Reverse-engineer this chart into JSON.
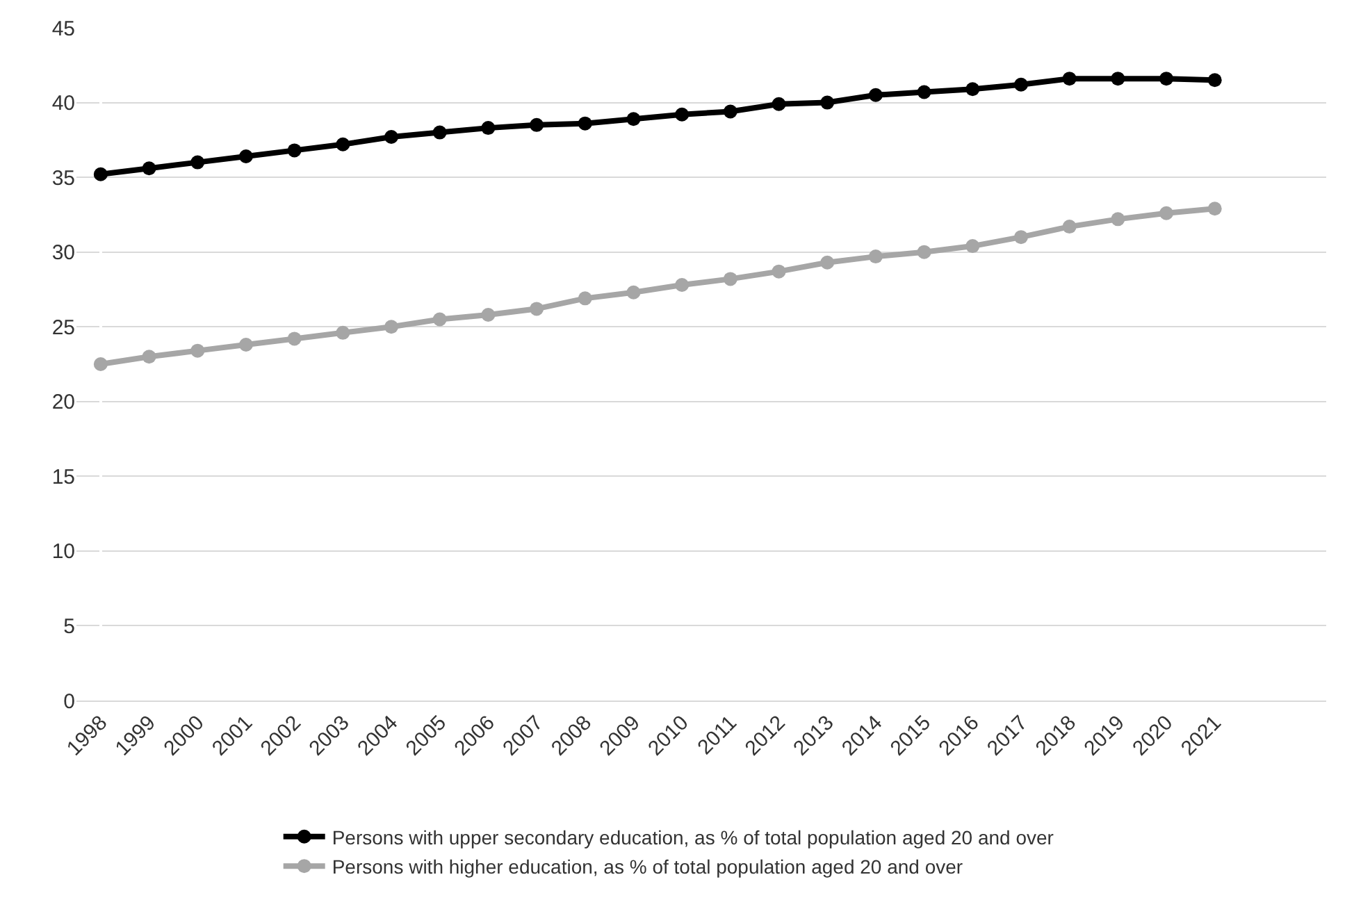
{
  "chart_data": {
    "type": "line",
    "categories": [
      "1998",
      "1999",
      "2000",
      "2001",
      "2002",
      "2003",
      "2004",
      "2005",
      "2006",
      "2007",
      "2008",
      "2009",
      "2010",
      "2011",
      "2012",
      "2013",
      "2014",
      "2015",
      "2016",
      "2017",
      "2018",
      "2019",
      "2020",
      "2021"
    ],
    "series": [
      {
        "name": "Persons with upper secondary education, as % of total population aged 20 and over",
        "color": "#000000",
        "values": [
          35.2,
          35.6,
          36.0,
          36.4,
          36.8,
          37.2,
          37.7,
          38.0,
          38.3,
          38.5,
          38.6,
          38.9,
          39.2,
          39.4,
          39.9,
          40.0,
          40.5,
          40.7,
          40.9,
          41.2,
          41.6,
          41.6,
          41.6,
          41.5
        ]
      },
      {
        "name": "Persons with higher education, as % of total population aged 20 and over",
        "color": "#a6a6a6",
        "values": [
          22.5,
          23.0,
          23.4,
          23.8,
          24.2,
          24.6,
          25.0,
          25.5,
          25.8,
          26.2,
          26.9,
          27.3,
          27.8,
          28.2,
          28.7,
          29.3,
          29.7,
          30.0,
          30.4,
          31.0,
          31.7,
          32.2,
          32.6,
          32.9
        ]
      }
    ],
    "ylim": [
      0,
      45
    ],
    "yticks": [
      0,
      5,
      10,
      15,
      20,
      25,
      30,
      35,
      40,
      45
    ],
    "grid": "y",
    "legend": "bottom",
    "marker": "circle",
    "line_style": "solid"
  }
}
